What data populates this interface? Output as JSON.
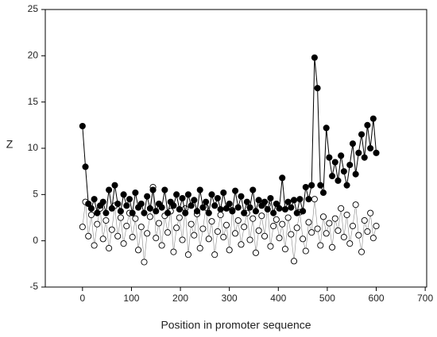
{
  "chart_data": {
    "type": "line",
    "x_label": "Position in promoter sequence",
    "y_label": "Z",
    "xlim": [
      -76,
      703
    ],
    "ylim": [
      -5,
      25
    ],
    "xticks": [
      0,
      100,
      200,
      300,
      400,
      500,
      600,
      700
    ],
    "yticks": [
      -5,
      0,
      5,
      10,
      15,
      20,
      25
    ],
    "x": [
      0,
      6,
      12,
      18,
      24,
      30,
      36,
      42,
      48,
      54,
      60,
      66,
      72,
      78,
      84,
      90,
      96,
      102,
      108,
      114,
      120,
      126,
      132,
      138,
      144,
      150,
      156,
      162,
      168,
      174,
      180,
      186,
      192,
      198,
      204,
      210,
      216,
      222,
      228,
      234,
      240,
      246,
      252,
      258,
      264,
      270,
      276,
      282,
      288,
      294,
      300,
      306,
      312,
      318,
      324,
      330,
      336,
      342,
      348,
      354,
      360,
      366,
      372,
      378,
      384,
      390,
      396,
      402,
      408,
      414,
      420,
      426,
      432,
      438,
      444,
      450,
      456,
      462,
      468,
      474,
      480,
      486,
      492,
      498,
      504,
      510,
      516,
      522,
      528,
      534,
      540,
      546,
      552,
      558,
      564,
      570,
      576,
      582,
      588,
      594,
      600
    ],
    "series": [
      {
        "color": "#000000",
        "marker_fill": "#000000",
        "values": [
          12.4,
          8,
          4,
          3.5,
          4.5,
          3,
          3.8,
          4.2,
          3,
          5.5,
          3.5,
          6,
          4,
          3.2,
          5,
          3.8,
          4.5,
          3,
          5.2,
          3.6,
          4,
          3,
          4.8,
          3.5,
          5.5,
          3.2,
          4,
          3.6,
          5.5,
          3,
          4.2,
          3.8,
          5,
          3.4,
          4.6,
          3,
          5,
          3.8,
          4.4,
          3.2,
          5.5,
          3.6,
          4.2,
          3,
          5,
          3.8,
          4.6,
          3.4,
          5.2,
          3.5,
          4,
          3.2,
          5.4,
          3.6,
          4.8,
          3,
          4.2,
          3.6,
          5.5,
          3.2,
          4.4,
          3.8,
          4.2,
          3.4,
          4.6,
          3,
          4,
          3.5,
          6.8,
          3.4,
          4.2,
          3.6,
          4.4,
          3,
          4.5,
          3.2,
          5.8,
          4.5,
          6,
          19.8,
          16.5,
          6,
          5.2,
          12.2,
          9,
          7,
          8.5,
          6.5,
          9.2,
          7.5,
          6,
          8.2,
          10.5,
          7.2,
          9.5,
          11.5,
          9,
          12.5,
          10,
          13.2,
          9.5
        ]
      },
      {
        "color": "#888888",
        "marker_fill": "#ffffff",
        "values": [
          1.5,
          4.2,
          0.5,
          2.8,
          -0.5,
          1.8,
          3.5,
          0.2,
          2.2,
          -0.8,
          1.2,
          3.8,
          0.5,
          2.5,
          -0.3,
          1.6,
          3,
          0.4,
          2.4,
          -1,
          1.5,
          -2.3,
          0.8,
          2.6,
          5.8,
          0.3,
          1.9,
          -0.5,
          2.7,
          0.9,
          3.2,
          -1.2,
          1.4,
          2.5,
          0.1,
          3.5,
          -1.5,
          1.8,
          0.6,
          2.9,
          -0.8,
          1.3,
          3.6,
          0.2,
          2.1,
          -1.5,
          1,
          2.8,
          0.4,
          1.7,
          -1,
          3.3,
          0.8,
          2.2,
          -0.4,
          1.5,
          3,
          0.1,
          2.4,
          -1.3,
          1.1,
          2.7,
          0.5,
          3.9,
          -0.6,
          1.6,
          2.3,
          0.3,
          1.8,
          -0.9,
          2.5,
          0.7,
          -2.2,
          1.4,
          3.1,
          0.2,
          -1.1,
          2,
          0.9,
          4.5,
          1.3,
          -0.5,
          2.6,
          0.8,
          1.9,
          -0.7,
          2.4,
          1.1,
          3.5,
          0.4,
          2.8,
          -0.3,
          1.6,
          3.9,
          0.6,
          -1.2,
          2.2,
          1,
          3,
          0.3,
          1.6
        ]
      }
    ]
  }
}
